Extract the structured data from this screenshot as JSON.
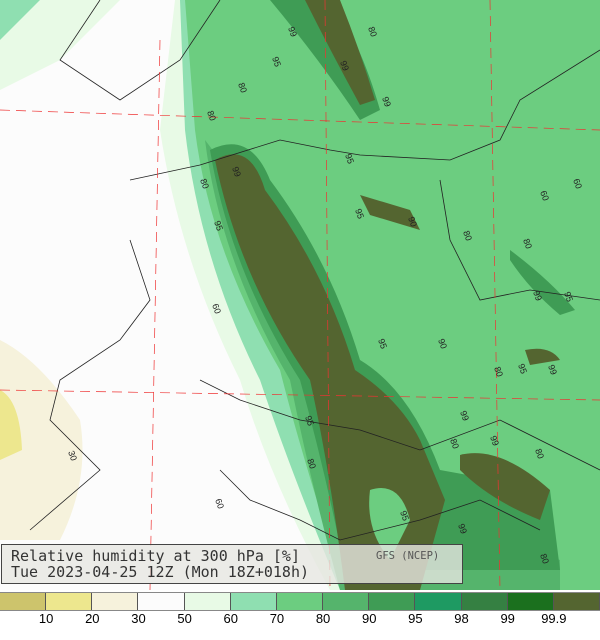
{
  "title": "Relative humidity at 300 hPa [%]",
  "subtitle": "Tue 2023-04-25 12Z (Mon 18Z+018h)",
  "source": "GFS (NCEP)",
  "legend": {
    "colors": [
      "#cdc46c",
      "#ede78e",
      "#f6f2dc",
      "#fcfcfc",
      "#e8fae6",
      "#8fdfb1",
      "#6ccd80",
      "#55b46c",
      "#3f9c55",
      "#1e9a62",
      "#358042",
      "#1b701e",
      "#546530"
    ],
    "ticks": [
      "10",
      "20",
      "30",
      "50",
      "60",
      "70",
      "80",
      "90",
      "95",
      "98",
      "99",
      "99.9"
    ]
  },
  "contour_labels": [
    "99",
    "80",
    "95",
    "99",
    "80",
    "99",
    "80",
    "99",
    "95",
    "95",
    "60",
    "60",
    "90",
    "80",
    "80",
    "95",
    "60",
    "95",
    "80",
    "99",
    "95",
    "99",
    "90",
    "80",
    "95",
    "99",
    "80",
    "99",
    "80",
    "95",
    "95",
    "80",
    "99",
    "30",
    "60",
    "80"
  ]
}
